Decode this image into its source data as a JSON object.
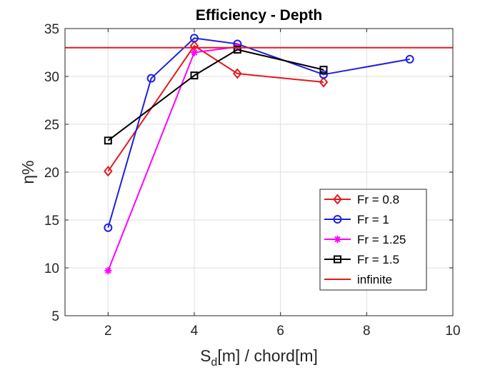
{
  "chart_data": {
    "type": "line",
    "title": "Efficiency - Depth",
    "xlabel": {
      "base": "S",
      "sub": "d",
      "rest": "[m] / chord[m]"
    },
    "ylabel": "η%",
    "xlim": [
      1,
      10
    ],
    "ylim": [
      5,
      35
    ],
    "xticks": [
      2,
      4,
      6,
      8,
      10
    ],
    "yticks": [
      5,
      10,
      15,
      20,
      25,
      30,
      35
    ],
    "grid": true,
    "legend_position": "lower-right",
    "series": [
      {
        "name": "Fr = 0.8",
        "color": "#e31a1c",
        "marker": "diamond",
        "x": [
          2,
          4,
          5,
          7
        ],
        "y": [
          20.1,
          33.2,
          30.3,
          29.4
        ]
      },
      {
        "name": "Fr = 1",
        "color": "#1f1fe0",
        "marker": "circle",
        "x": [
          2,
          3,
          4,
          5,
          7,
          9
        ],
        "y": [
          14.2,
          29.8,
          34.0,
          33.4,
          30.2,
          31.8
        ]
      },
      {
        "name": "Fr = 1.25",
        "color": "#ff00ff",
        "marker": "asterisk",
        "x": [
          2,
          4,
          5
        ],
        "y": [
          9.7,
          32.5,
          33.1
        ]
      },
      {
        "name": "Fr = 1.5",
        "color": "#000000",
        "marker": "square",
        "x": [
          2,
          4,
          5,
          7
        ],
        "y": [
          23.3,
          30.1,
          32.8,
          30.7
        ]
      },
      {
        "name": "infinite",
        "color": "#e31a1c",
        "marker": "none",
        "type": "hline",
        "y": 33
      }
    ]
  }
}
